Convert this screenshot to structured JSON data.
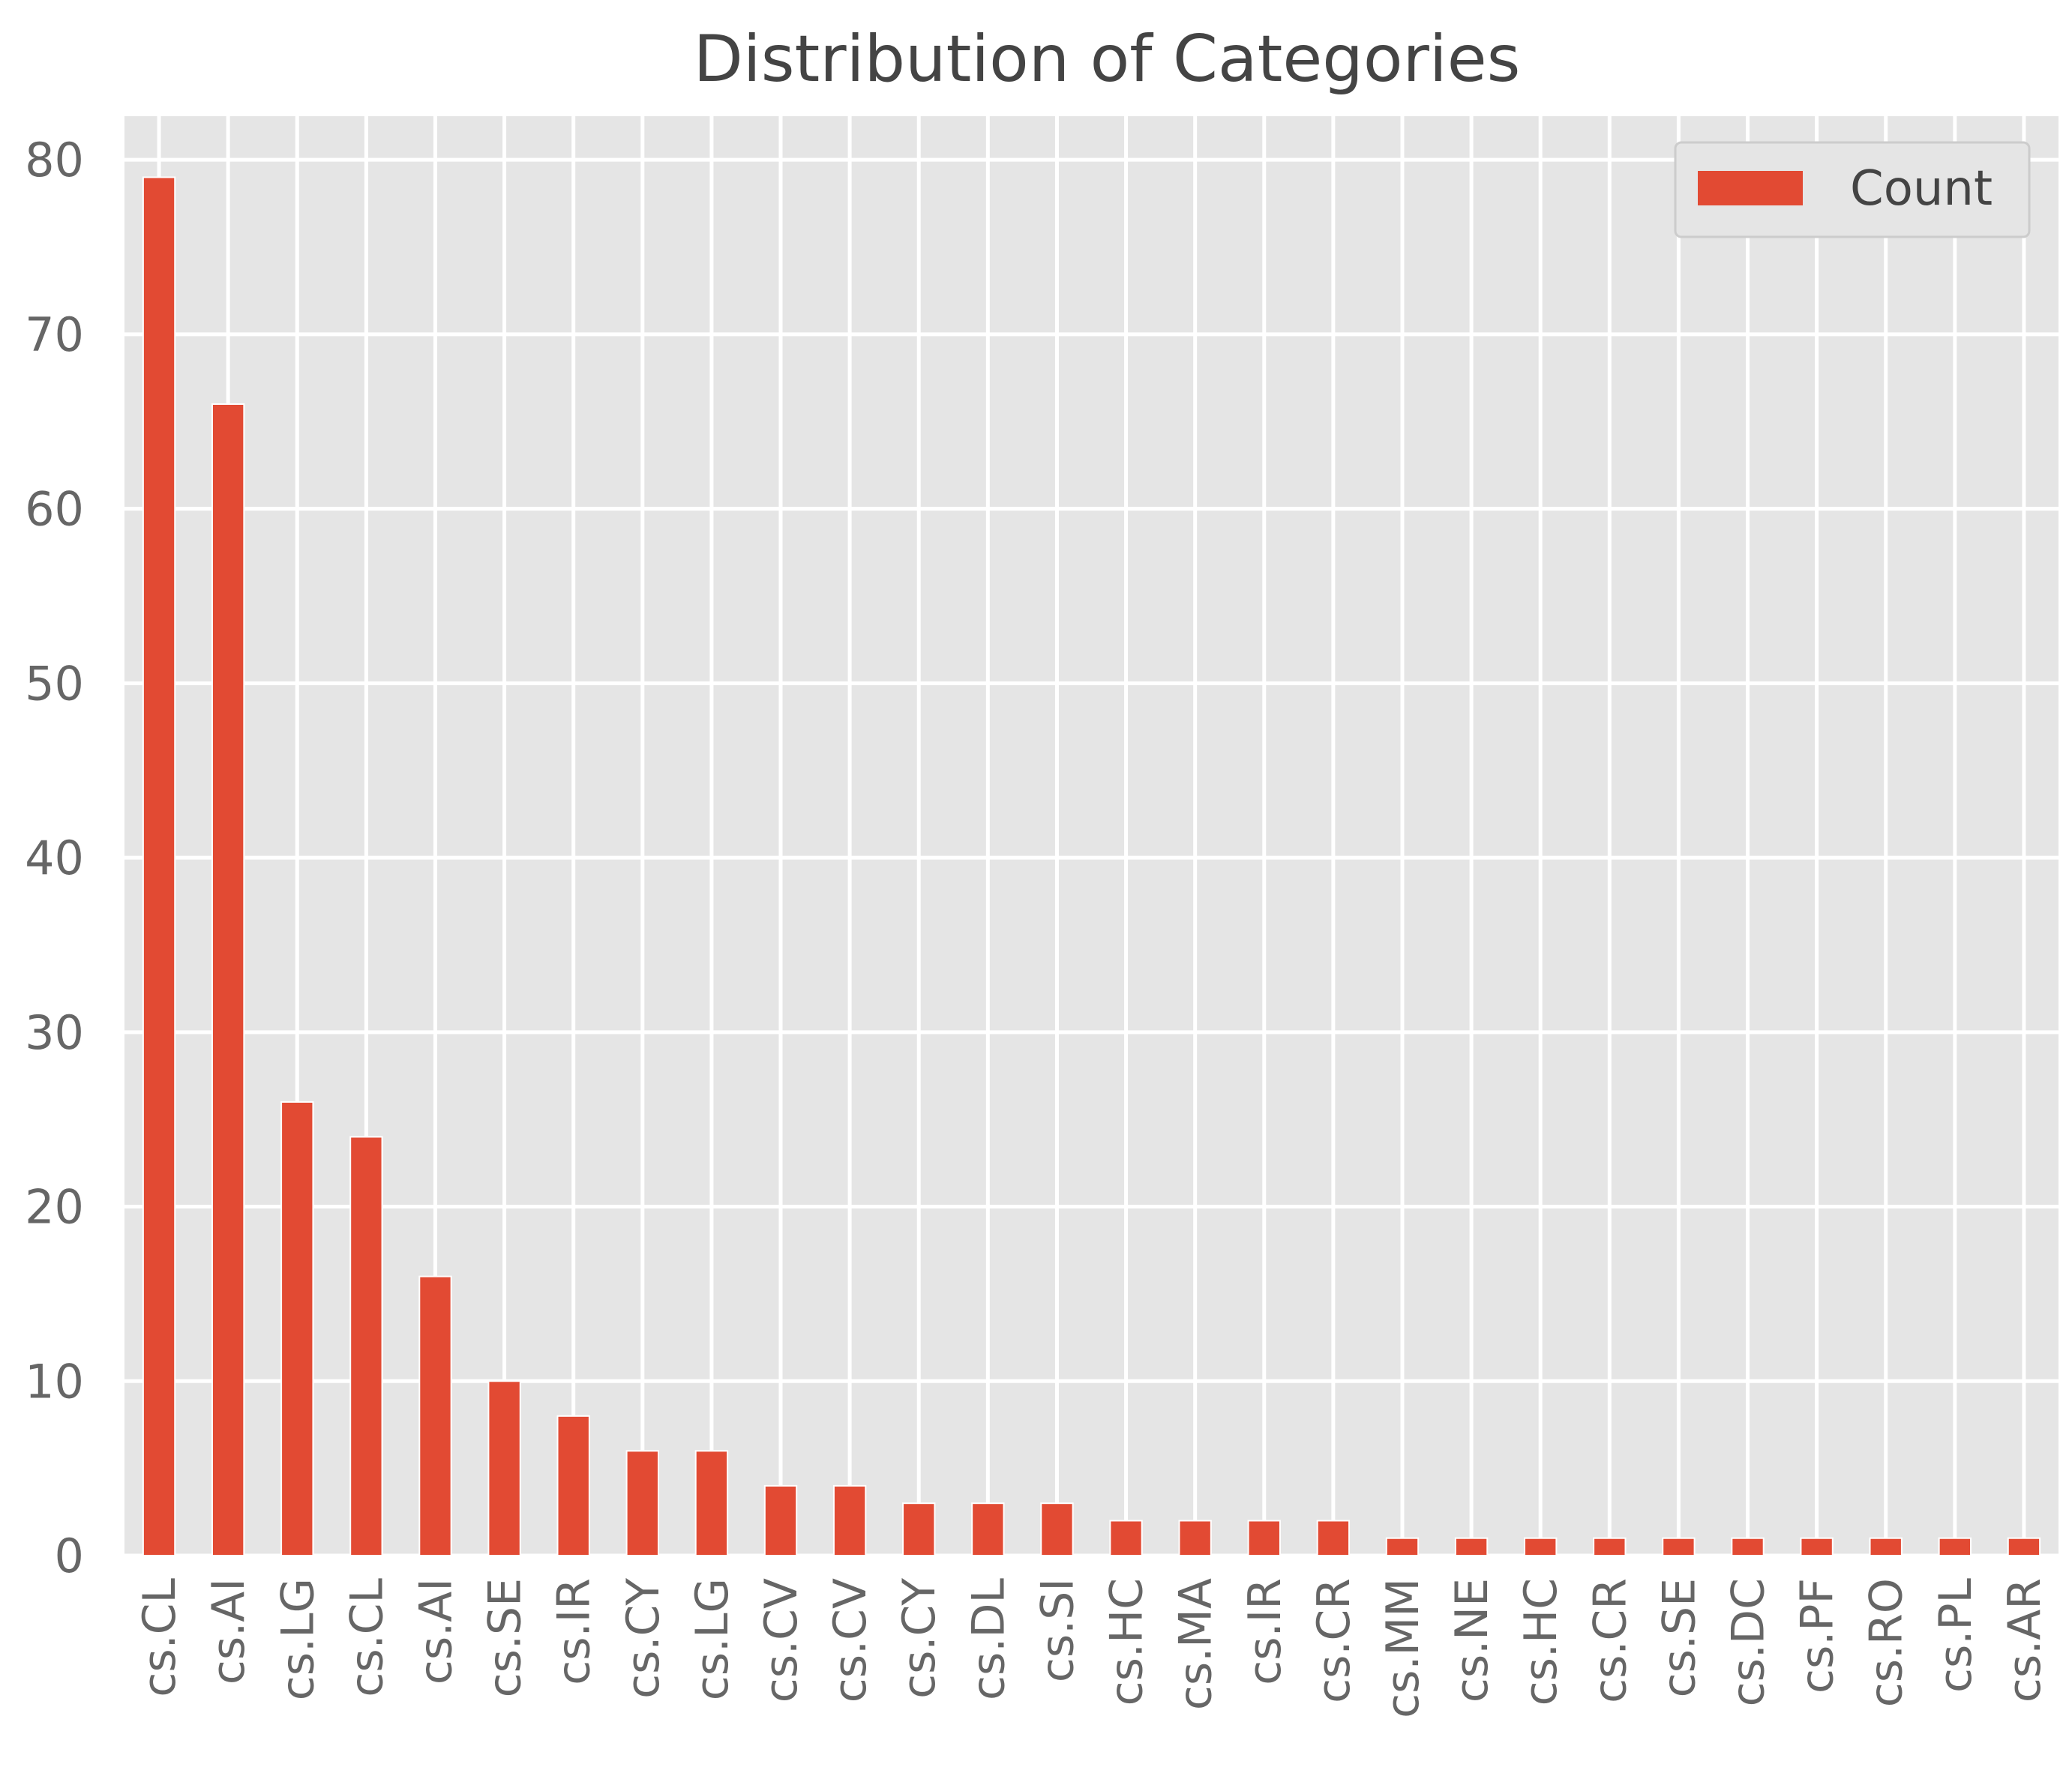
{
  "chart_data": {
    "type": "bar",
    "title": "Distribution of Categories",
    "xlabel": "",
    "ylabel": "",
    "categories": [
      "cs.CL",
      "cs.AI",
      "cs.LG",
      "cs.CL",
      "cs.AI",
      "cs.SE",
      "cs.IR",
      "cs.CY",
      "cs.LG",
      "cs.CV",
      "cs.CV",
      "cs.CY",
      "cs.DL",
      "cs.SI",
      "cs.HC",
      "cs.MA",
      "cs.IR",
      "cs.CR",
      "cs.MM",
      "cs.NE",
      "cs.HC",
      "cs.CR",
      "cs.SE",
      "cs.DC",
      "cs.PF",
      "cs.RO",
      "cs.PL",
      "cs.AR"
    ],
    "series": [
      {
        "name": "Count",
        "values": [
          79,
          66,
          26,
          24,
          16,
          10,
          8,
          6,
          6,
          4,
          4,
          3,
          3,
          3,
          2,
          2,
          2,
          2,
          1,
          1,
          1,
          1,
          1,
          1,
          1,
          1,
          1,
          1
        ],
        "color": "#E24A33"
      }
    ],
    "ylim": [
      0,
      82.5
    ],
    "yticks": [
      0,
      10,
      20,
      30,
      40,
      50,
      60,
      70,
      80
    ],
    "grid": true,
    "legend_position": "top-right",
    "colors": {
      "bar": "#E24A33",
      "background": "#E5E5E5",
      "grid": "#FFFFFF"
    }
  }
}
